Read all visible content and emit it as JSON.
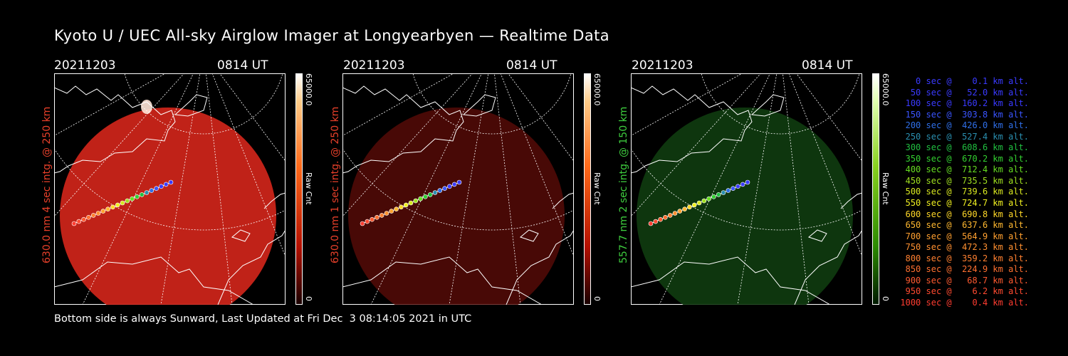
{
  "title": "Kyoto U / UEC All-sky Airglow Imager at Longyearbyen — Realtime Data",
  "footer": "Bottom side is always Sunward, Last Updated at Fri Dec  3 08:14:05 2021 in UTC",
  "panels": [
    {
      "date": "20211203",
      "time": "0814 UT",
      "side_label": "630.0 nm 4 sec intg. @ 250 km",
      "side_color": "#e8402a",
      "cbar_max": "65000.0",
      "cbar_min": "0",
      "cbar_label": "Raw Cnt",
      "glow_color": "#d0251a",
      "glow_opacity": 0.92
    },
    {
      "date": "20211203",
      "time": "0814 UT",
      "side_label": "630.0 nm 1 sec intg. @ 250 km",
      "side_color": "#e8402a",
      "cbar_max": "65000.0",
      "cbar_min": "0",
      "cbar_label": "Raw Cnt",
      "glow_color": "#5a0b07",
      "glow_opacity": 0.8
    },
    {
      "date": "20211203",
      "time": "0814 UT",
      "side_label": "557.7 nm 2 sec intg. @ 150 km",
      "side_color": "#3fcf3f",
      "cbar_max": "65000.0",
      "cbar_min": "0",
      "cbar_label": "Raw Cnt",
      "glow_color": "#0f3c0f",
      "glow_opacity": 0.9
    }
  ],
  "legend": [
    {
      "text": "0 sec @    0.1 km alt.",
      "color": "#3a3aff"
    },
    {
      "text": "50 sec @   52.0 km alt.",
      "color": "#3a3aff"
    },
    {
      "text": "100 sec @  160.2 km alt.",
      "color": "#3a3aff"
    },
    {
      "text": "150 sec @  303.8 km alt.",
      "color": "#3a55ff"
    },
    {
      "text": "200 sec @  426.0 km alt.",
      "color": "#2f6fe8"
    },
    {
      "text": "250 sec @  527.4 km alt.",
      "color": "#2a8fb0"
    },
    {
      "text": "300 sec @  608.6 km alt.",
      "color": "#20c040"
    },
    {
      "text": "350 sec @  670.2 km alt.",
      "color": "#33d030"
    },
    {
      "text": "400 sec @  712.4 km alt.",
      "color": "#66dd22"
    },
    {
      "text": "450 sec @  735.5 km alt.",
      "color": "#a0e020"
    },
    {
      "text": "500 sec @  739.6 km alt.",
      "color": "#d8e820"
    },
    {
      "text": "550 sec @  724.7 km alt.",
      "color": "#f0f020"
    },
    {
      "text": "600 sec @  690.8 km alt.",
      "color": "#ffd828"
    },
    {
      "text": "650 sec @  637.6 km alt.",
      "color": "#ffb830"
    },
    {
      "text": "700 sec @  564.9 km alt.",
      "color": "#ffa030"
    },
    {
      "text": "750 sec @  472.3 km alt.",
      "color": "#ff9030"
    },
    {
      "text": "800 sec @  359.2 km alt.",
      "color": "#ff8030"
    },
    {
      "text": "850 sec @  224.9 km alt.",
      "color": "#ff7030"
    },
    {
      "text": "900 sec @   68.7 km alt.",
      "color": "#ff5a30"
    },
    {
      "text": "950 sec @    6.2 km alt.",
      "color": "#ff4a30"
    },
    {
      "text": "1000 sec @    0.4 km alt.",
      "color": "#ff3c30"
    }
  ]
}
